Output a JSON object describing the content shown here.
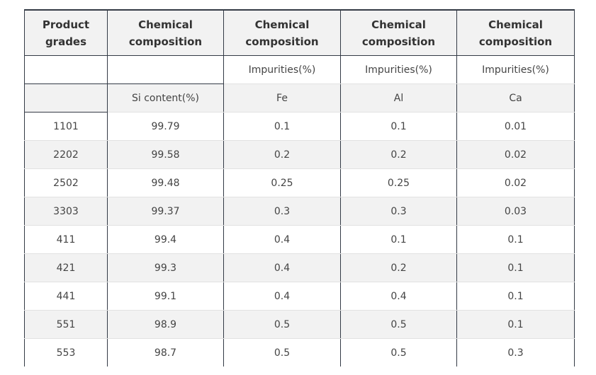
{
  "table": {
    "headers": [
      [
        "Product",
        "grades"
      ],
      [
        "Chemical",
        "composition"
      ],
      [
        "Chemical",
        "composition"
      ],
      [
        "Chemical",
        "composition"
      ],
      [
        "Chemical",
        "composition"
      ]
    ],
    "subheader_impurities": [
      "",
      "",
      "Impurities(%)",
      "Impurities(%)",
      "Impurities(%)"
    ],
    "subheader_elements": [
      "",
      "Si content(%)",
      "Fe",
      "Al",
      "Ca"
    ],
    "rows": [
      [
        "1101",
        "99.79",
        "0.1",
        "0.1",
        "0.01"
      ],
      [
        "2202",
        "99.58",
        "0.2",
        "0.2",
        "0.02"
      ],
      [
        "2502",
        "99.48",
        "0.25",
        "0.25",
        "0.02"
      ],
      [
        "3303",
        "99.37",
        "0.3",
        "0.3",
        "0.03"
      ],
      [
        "411",
        "99.4",
        "0.4",
        "0.1",
        "0.1"
      ],
      [
        "421",
        "99.3",
        "0.4",
        "0.2",
        "0.1"
      ],
      [
        "441",
        "99.1",
        "0.4",
        "0.4",
        "0.1"
      ],
      [
        "551",
        "98.9",
        "0.5",
        "0.5",
        "0.1"
      ],
      [
        "553",
        "98.7",
        "0.5",
        "0.5",
        "0.3"
      ]
    ]
  }
}
